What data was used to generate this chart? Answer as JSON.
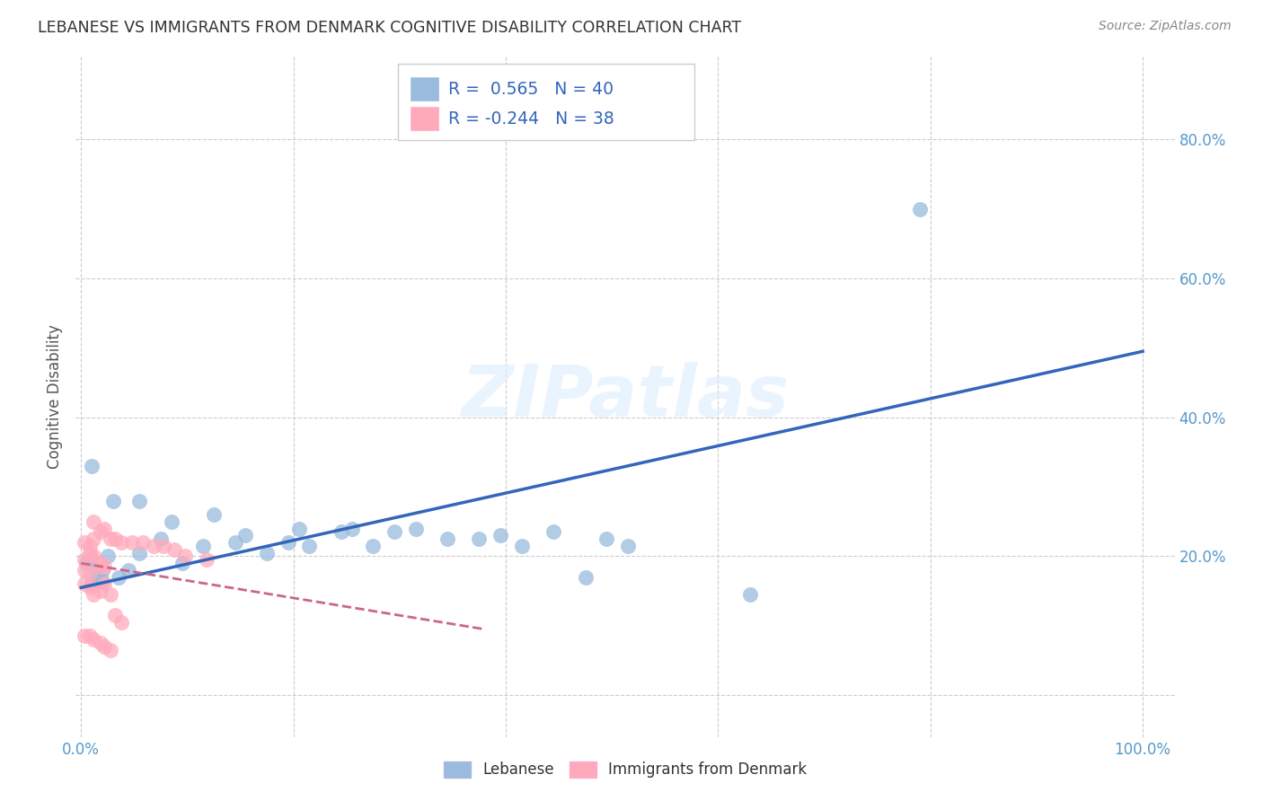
{
  "title": "LEBANESE VS IMMIGRANTS FROM DENMARK COGNITIVE DISABILITY CORRELATION CHART",
  "source": "Source: ZipAtlas.com",
  "ylabel": "Cognitive Disability",
  "y_ticks": [
    0.0,
    0.2,
    0.4,
    0.6,
    0.8
  ],
  "y_tick_labels": [
    "",
    "20.0%",
    "40.0%",
    "60.0%",
    "80.0%"
  ],
  "x_ticks": [
    0.0,
    0.2,
    0.4,
    0.6,
    0.8,
    1.0
  ],
  "x_tick_labels": [
    "0.0%",
    "",
    "",
    "",
    "",
    "100.0%"
  ],
  "xlim": [
    -0.005,
    1.03
  ],
  "ylim": [
    -0.06,
    0.92
  ],
  "legend_blue_r": "0.565",
  "legend_blue_n": "40",
  "legend_pink_r": "-0.244",
  "legend_pink_n": "38",
  "watermark": "ZIPatlas",
  "blue_scatter_x": [
    0.005,
    0.01,
    0.015,
    0.02,
    0.01,
    0.02,
    0.015,
    0.025,
    0.035,
    0.045,
    0.055,
    0.075,
    0.095,
    0.115,
    0.145,
    0.175,
    0.195,
    0.215,
    0.245,
    0.275,
    0.295,
    0.315,
    0.345,
    0.375,
    0.395,
    0.415,
    0.445,
    0.475,
    0.495,
    0.515,
    0.01,
    0.03,
    0.055,
    0.085,
    0.125,
    0.155,
    0.205,
    0.255,
    0.63,
    0.79
  ],
  "blue_scatter_y": [
    0.19,
    0.16,
    0.175,
    0.165,
    0.195,
    0.18,
    0.165,
    0.2,
    0.17,
    0.18,
    0.205,
    0.225,
    0.19,
    0.215,
    0.22,
    0.205,
    0.22,
    0.215,
    0.235,
    0.215,
    0.235,
    0.24,
    0.225,
    0.225,
    0.23,
    0.215,
    0.235,
    0.17,
    0.225,
    0.215,
    0.33,
    0.28,
    0.28,
    0.25,
    0.26,
    0.23,
    0.24,
    0.24,
    0.145,
    0.7
  ],
  "pink_scatter_x": [
    0.003,
    0.008,
    0.012,
    0.018,
    0.003,
    0.008,
    0.018,
    0.022,
    0.012,
    0.003,
    0.008,
    0.012,
    0.018,
    0.022,
    0.028,
    0.032,
    0.038,
    0.048,
    0.058,
    0.068,
    0.078,
    0.088,
    0.098,
    0.118,
    0.003,
    0.008,
    0.012,
    0.018,
    0.022,
    0.028,
    0.032,
    0.038,
    0.003,
    0.008,
    0.012,
    0.018,
    0.022,
    0.028
  ],
  "pink_scatter_y": [
    0.195,
    0.205,
    0.2,
    0.19,
    0.18,
    0.175,
    0.185,
    0.185,
    0.225,
    0.22,
    0.215,
    0.25,
    0.235,
    0.24,
    0.225,
    0.225,
    0.22,
    0.22,
    0.22,
    0.215,
    0.215,
    0.21,
    0.2,
    0.195,
    0.16,
    0.155,
    0.145,
    0.15,
    0.16,
    0.145,
    0.115,
    0.105,
    0.085,
    0.085,
    0.08,
    0.075,
    0.07,
    0.065
  ],
  "blue_line_x": [
    0.0,
    1.0
  ],
  "blue_line_y": [
    0.155,
    0.495
  ],
  "pink_line_x": [
    0.0,
    0.38
  ],
  "pink_line_y": [
    0.19,
    0.095
  ],
  "blue_color": "#99BBDD",
  "pink_color": "#FFAABB",
  "blue_line_color": "#3366BB",
  "pink_line_color": "#CC6688",
  "grid_color": "#CCCCCC",
  "bg_color": "#FFFFFF",
  "title_color": "#333333",
  "axis_color": "#5599CC",
  "legend_text_color": "#3366BB"
}
